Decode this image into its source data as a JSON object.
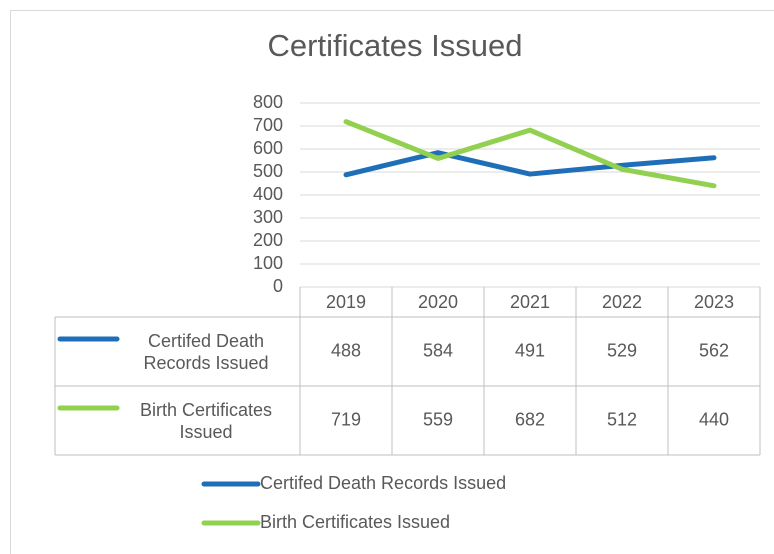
{
  "chart_data": {
    "type": "line",
    "title": "Certificates Issued",
    "categories": [
      "2019",
      "2020",
      "2021",
      "2022",
      "2023"
    ],
    "series": [
      {
        "name": "Certifed Death Records Issued",
        "color": "#1f6fb8",
        "values": [
          488,
          584,
          491,
          529,
          562
        ]
      },
      {
        "name": "Birth Certificates Issued",
        "color": "#92d050",
        "values": [
          719,
          559,
          682,
          512,
          440
        ]
      }
    ],
    "ylim": [
      0,
      800
    ],
    "yticks": [
      0,
      100,
      200,
      300,
      400,
      500,
      600,
      700,
      800
    ],
    "grid": true
  }
}
